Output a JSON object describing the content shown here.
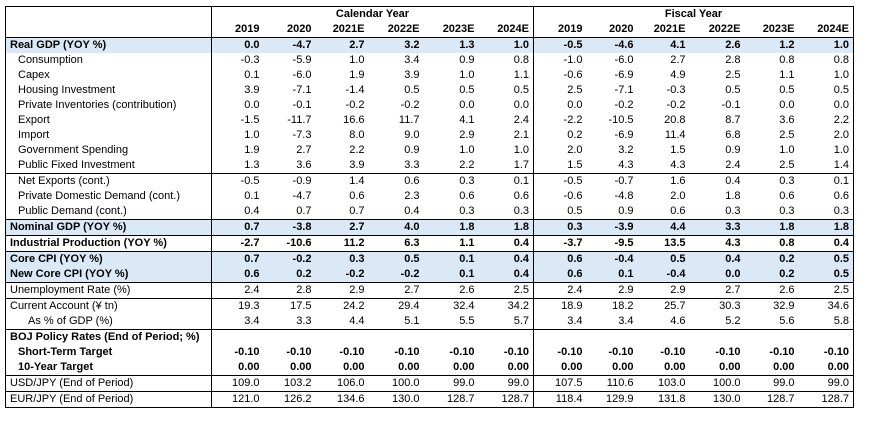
{
  "header": {
    "calendar_label": "Calendar Year",
    "fiscal_label": "Fiscal Year",
    "calendar_years": [
      "2019",
      "2020",
      "2021E",
      "2022E",
      "2023E",
      "2024E"
    ],
    "fiscal_years": [
      "2019",
      "2020",
      "2021E",
      "2022E",
      "2023E",
      "2024E"
    ]
  },
  "rows": [
    {
      "label": "Real GDP (YOY %)",
      "cal": [
        "0.0",
        "-4.7",
        "2.7",
        "3.2",
        "1.3",
        "1.0"
      ],
      "fis": [
        "-0.5",
        "-4.6",
        "4.1",
        "2.6",
        "1.2",
        "1.0"
      ]
    },
    {
      "label": "Consumption",
      "cal": [
        "-0.3",
        "-5.9",
        "1.0",
        "3.4",
        "0.9",
        "0.8"
      ],
      "fis": [
        "-1.0",
        "-6.0",
        "2.7",
        "2.8",
        "0.8",
        "0.8"
      ]
    },
    {
      "label": "Capex",
      "cal": [
        "0.1",
        "-6.0",
        "1.9",
        "3.9",
        "1.0",
        "1.1"
      ],
      "fis": [
        "-0.6",
        "-6.9",
        "4.9",
        "2.5",
        "1.1",
        "1.0"
      ]
    },
    {
      "label": "Housing Investment",
      "cal": [
        "3.9",
        "-7.1",
        "-1.4",
        "0.5",
        "0.5",
        "0.5"
      ],
      "fis": [
        "2.5",
        "-7.1",
        "-0.3",
        "0.5",
        "0.5",
        "0.5"
      ]
    },
    {
      "label": "Private Inventories (contribution)",
      "cal": [
        "0.0",
        "-0.1",
        "-0.2",
        "-0.2",
        "0.0",
        "0.0"
      ],
      "fis": [
        "0.0",
        "-0.2",
        "-0.2",
        "-0.1",
        "0.0",
        "0.0"
      ]
    },
    {
      "label": "Export",
      "cal": [
        "-1.5",
        "-11.7",
        "16.6",
        "11.7",
        "4.1",
        "2.4"
      ],
      "fis": [
        "-2.2",
        "-10.5",
        "20.8",
        "8.7",
        "3.6",
        "2.2"
      ]
    },
    {
      "label": "Import",
      "cal": [
        "1.0",
        "-7.3",
        "8.0",
        "9.0",
        "2.9",
        "2.1"
      ],
      "fis": [
        "0.2",
        "-6.9",
        "11.4",
        "6.8",
        "2.5",
        "2.0"
      ]
    },
    {
      "label": "Government Spending",
      "cal": [
        "1.9",
        "2.7",
        "2.2",
        "0.9",
        "1.0",
        "1.0"
      ],
      "fis": [
        "2.0",
        "3.2",
        "1.5",
        "0.9",
        "1.0",
        "1.0"
      ]
    },
    {
      "label": "Public Fixed Investment",
      "cal": [
        "1.3",
        "3.6",
        "3.9",
        "3.3",
        "2.2",
        "1.7"
      ],
      "fis": [
        "1.5",
        "4.3",
        "4.3",
        "2.4",
        "2.5",
        "1.4"
      ]
    },
    {
      "label": "Net Exports (cont.)",
      "cal": [
        "-0.5",
        "-0.9",
        "1.4",
        "0.6",
        "0.3",
        "0.1"
      ],
      "fis": [
        "-0.5",
        "-0.7",
        "1.6",
        "0.4",
        "0.3",
        "0.1"
      ]
    },
    {
      "label": "Private Domestic Demand  (cont.)",
      "cal": [
        "0.1",
        "-4.7",
        "0.6",
        "2.3",
        "0.6",
        "0.6"
      ],
      "fis": [
        "-0.6",
        "-4.8",
        "2.0",
        "1.8",
        "0.6",
        "0.6"
      ]
    },
    {
      "label": "Public Demand (cont.)",
      "cal": [
        "0.4",
        "0.7",
        "0.7",
        "0.4",
        "0.3",
        "0.3"
      ],
      "fis": [
        "0.5",
        "0.9",
        "0.6",
        "0.3",
        "0.3",
        "0.3"
      ]
    },
    {
      "label": "Nominal GDP (YOY %)",
      "cal": [
        "0.7",
        "-3.8",
        "2.7",
        "4.0",
        "1.8",
        "1.8"
      ],
      "fis": [
        "0.3",
        "-3.9",
        "4.4",
        "3.3",
        "1.8",
        "1.8"
      ]
    },
    {
      "label": "Industrial Production (YOY %)",
      "cal": [
        "-2.7",
        "-10.6",
        "11.2",
        "6.3",
        "1.1",
        "0.4"
      ],
      "fis": [
        "-3.7",
        "-9.5",
        "13.5",
        "4.3",
        "0.8",
        "0.4"
      ]
    },
    {
      "label": "Core CPI  (YOY %)",
      "cal": [
        "0.7",
        "-0.2",
        "0.3",
        "0.5",
        "0.1",
        "0.4"
      ],
      "fis": [
        "0.6",
        "-0.4",
        "0.5",
        "0.4",
        "0.2",
        "0.5"
      ]
    },
    {
      "label": "New Core CPI  (YOY %)",
      "cal": [
        "0.6",
        "0.2",
        "-0.2",
        "-0.2",
        "0.1",
        "0.4"
      ],
      "fis": [
        "0.6",
        "0.1",
        "-0.4",
        "0.0",
        "0.2",
        "0.5"
      ]
    },
    {
      "label": "Unemployment Rate (%)",
      "cal": [
        "2.4",
        "2.8",
        "2.9",
        "2.7",
        "2.6",
        "2.5"
      ],
      "fis": [
        "2.4",
        "2.9",
        "2.9",
        "2.7",
        "2.6",
        "2.5"
      ]
    },
    {
      "label": "Current Account (¥ tn)",
      "cal": [
        "19.3",
        "17.5",
        "24.2",
        "29.4",
        "32.4",
        "34.2"
      ],
      "fis": [
        "18.9",
        "18.2",
        "25.7",
        "30.3",
        "32.9",
        "34.6"
      ]
    },
    {
      "label": "As % of GDP (%)",
      "cal": [
        "3.4",
        "3.3",
        "4.4",
        "5.1",
        "5.5",
        "5.7"
      ],
      "fis": [
        "3.4",
        "3.4",
        "4.6",
        "5.2",
        "5.6",
        "5.8"
      ]
    },
    {
      "label": "BOJ Policy Rates (End of Period; %)",
      "cal": [
        "",
        "",
        "",
        "",
        "",
        ""
      ],
      "fis": [
        "",
        "",
        "",
        "",
        "",
        ""
      ]
    },
    {
      "label": "Short-Term Target",
      "cal": [
        "-0.10",
        "-0.10",
        "-0.10",
        "-0.10",
        "-0.10",
        "-0.10"
      ],
      "fis": [
        "-0.10",
        "-0.10",
        "-0.10",
        "-0.10",
        "-0.10",
        "-0.10"
      ]
    },
    {
      "label": "10-Year Target",
      "cal": [
        "0.00",
        "0.00",
        "0.00",
        "0.00",
        "0.00",
        "0.00"
      ],
      "fis": [
        "0.00",
        "0.00",
        "0.00",
        "0.00",
        "0.00",
        "0.00"
      ]
    },
    {
      "label": "USD/JPY (End of Period)",
      "cal": [
        "109.0",
        "103.2",
        "106.0",
        "100.0",
        "99.0",
        "99.0"
      ],
      "fis": [
        "107.5",
        "110.6",
        "103.0",
        "100.0",
        "99.0",
        "99.0"
      ]
    },
    {
      "label": "EUR/JPY (End of Period)",
      "cal": [
        "121.0",
        "126.2",
        "134.6",
        "130.0",
        "128.7",
        "128.7"
      ],
      "fis": [
        "118.4",
        "129.9",
        "131.8",
        "130.0",
        "128.7",
        "128.7"
      ]
    }
  ]
}
